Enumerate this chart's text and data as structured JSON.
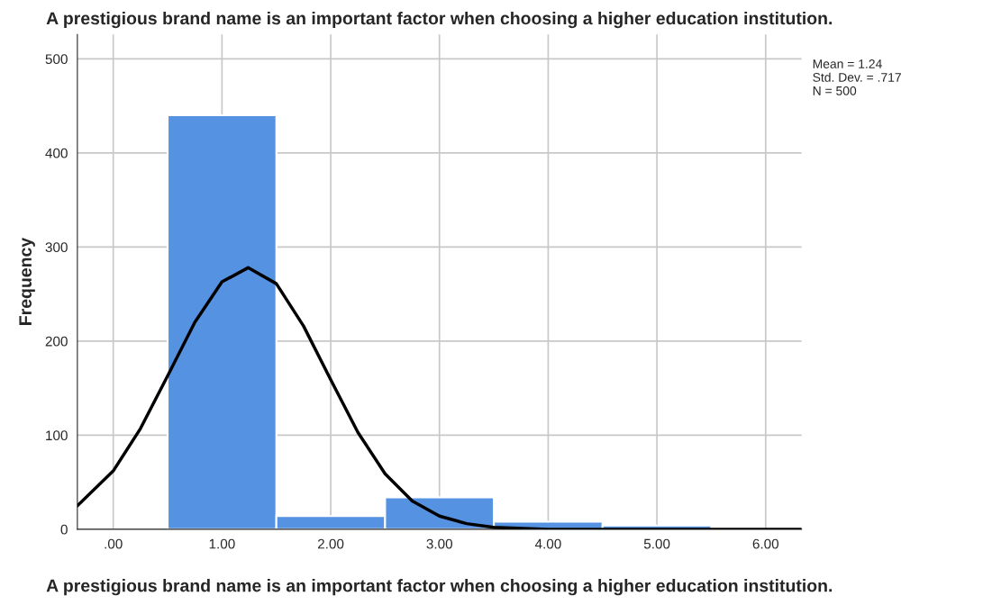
{
  "chart_data": {
    "type": "histogram",
    "title": "A prestigious brand name is an important factor when choosing a higher education institution.",
    "xlabel": "A prestigious brand name is an important factor when choosing a higher education institution.",
    "ylabel": "Frequency",
    "bins": [
      0.5,
      1.5,
      2.5,
      3.5,
      4.5,
      5.5
    ],
    "values": [
      440,
      14,
      34,
      8,
      4
    ],
    "color": "#5592e2",
    "series": [
      {
        "type": "line",
        "color": "#000000",
        "x": [
          -0.33,
          0,
          0.25,
          0.5,
          0.75,
          1,
          1.24,
          1.5,
          1.75,
          2,
          2.25,
          2.5,
          2.75,
          3,
          3.25,
          3.5,
          4,
          5,
          6.33
        ],
        "values": [
          25,
          62,
          107,
          163,
          220,
          263,
          278,
          261,
          216,
          159,
          103,
          59,
          30,
          14,
          6,
          2,
          0,
          0,
          0
        ]
      }
    ],
    "xlim": [
      -0.33,
      6.33
    ],
    "ylim": [
      0,
      526
    ],
    "xticks": [
      {
        "value": 0,
        "label": ".00"
      },
      {
        "value": 1,
        "label": "1.00"
      },
      {
        "value": 2,
        "label": "2.00"
      },
      {
        "value": 3,
        "label": "3.00"
      },
      {
        "value": 4,
        "label": "4.00"
      },
      {
        "value": 5,
        "label": "5.00"
      },
      {
        "value": 6,
        "label": "6.00"
      }
    ],
    "yticks": [
      0,
      100,
      200,
      300,
      400,
      500
    ],
    "grid": true,
    "annotations": [
      "Mean = 1.24\nStd. Dev. = .717\nN = 500"
    ]
  }
}
